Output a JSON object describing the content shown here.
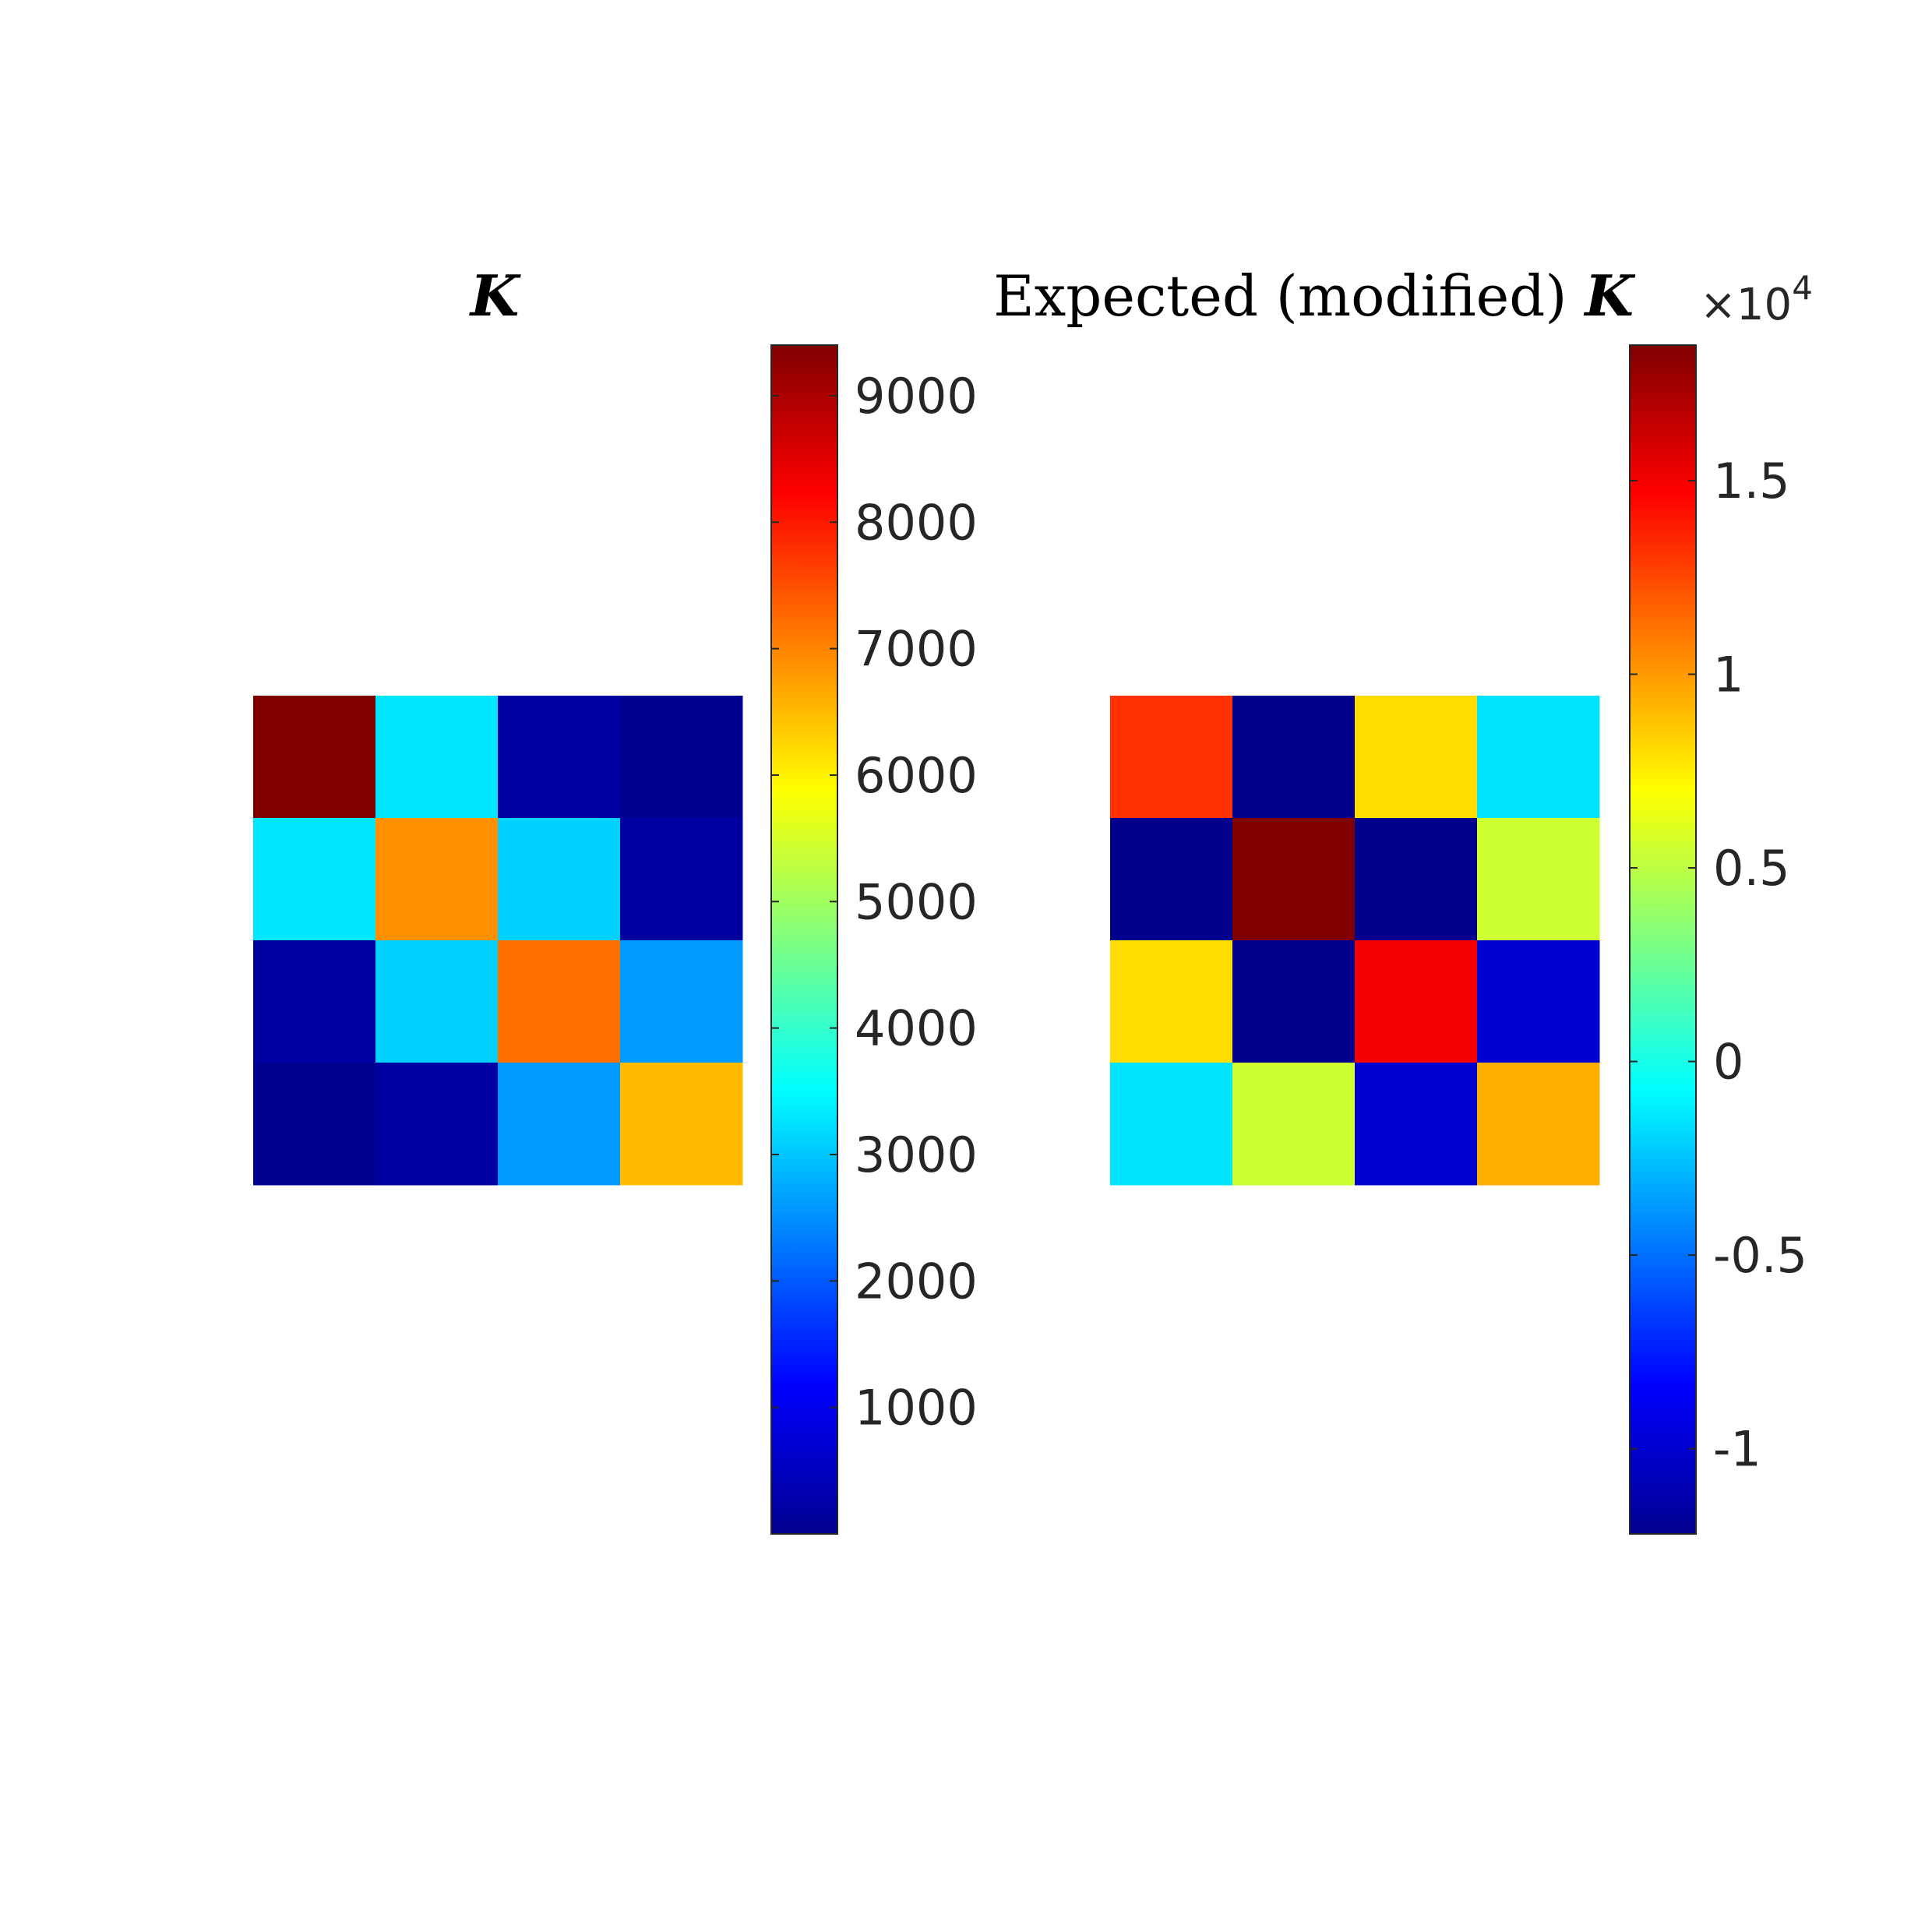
{
  "chart_data": [
    {
      "type": "heatmap",
      "title_prefix": "",
      "title_symbol": "K",
      "rows": 4,
      "cols": 4,
      "values": [
        [
          9400,
          3300,
          300,
          150
        ],
        [
          3300,
          6900,
          3100,
          300
        ],
        [
          300,
          3100,
          7200,
          2600
        ],
        [
          150,
          300,
          2600,
          6500
        ]
      ],
      "colorbar": {
        "range": [
          0,
          9400
        ],
        "ticks": [
          1000,
          2000,
          3000,
          4000,
          5000,
          6000,
          7000,
          8000,
          9000
        ],
        "tick_labels": [
          "1000",
          "2000",
          "3000",
          "4000",
          "5000",
          "6000",
          "7000",
          "8000",
          "9000"
        ],
        "exponent_label": ""
      },
      "colormap": "jet"
    },
    {
      "type": "heatmap",
      "title_prefix": "Expected (modified) ",
      "title_symbol": "K",
      "rows": 4,
      "cols": 4,
      "values": [
        [
          13200,
          -11800,
          8000,
          -1500
        ],
        [
          -11800,
          18500,
          -11800,
          5500
        ],
        [
          8000,
          -11800,
          15000,
          -9800
        ],
        [
          -1500,
          5500,
          -9800,
          9400
        ]
      ],
      "colorbar": {
        "range": [
          -12200,
          18500
        ],
        "ticks": [
          -10000,
          -5000,
          0,
          5000,
          10000,
          15000
        ],
        "tick_labels": [
          "-1",
          "-0.5",
          "0",
          "0.5",
          "1",
          "1.5"
        ],
        "exponent_label": "×10",
        "exponent_power": "4"
      },
      "colormap": "jet"
    }
  ]
}
